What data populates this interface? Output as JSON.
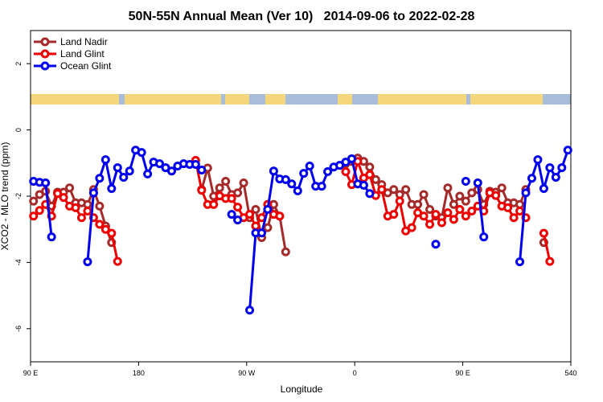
{
  "chart_data": {
    "type": "line",
    "title": "50N-55N Annual Mean (Ver 10)   2014-09-06 to 2022-02-28",
    "x_label": "Longitude",
    "y_label": "XCO2 - MLO trend (ppm)",
    "xlim": [
      90,
      540
    ],
    "ylim": [
      -7,
      3
    ],
    "xticks": [
      {
        "value": 90,
        "label": "90 E"
      },
      180,
      {
        "value": 270,
        "label": "90 W"
      },
      {
        "value": 360,
        "label": "0"
      },
      {
        "value": 450,
        "label": "90 E"
      },
      540
    ],
    "yticks": [
      -6,
      -4,
      -2,
      0,
      2
    ],
    "legend": "top-left",
    "x": [
      92.5,
      97.5,
      102.5,
      107.5,
      112.5,
      117.5,
      122.5,
      127.5,
      132.5,
      137.5,
      142.5,
      147.5,
      152.5,
      157.5,
      162.5,
      167.5,
      172.5,
      177.5,
      182.5,
      187.5,
      192.5,
      197.5,
      202.5,
      207.5,
      212.5,
      217.5,
      222.5,
      227.5,
      232.5,
      237.5,
      242.5,
      247.5,
      252.5,
      257.5,
      262.5,
      267.5,
      272.5,
      277.5,
      282.5,
      287.5,
      292.5,
      297.5,
      302.5,
      307.5,
      312.5,
      317.5,
      322.5,
      327.5,
      332.5,
      337.5,
      342.5,
      347.5,
      352.5,
      357.5,
      362.5,
      367.5,
      372.5,
      377.5,
      382.5,
      387.5,
      392.5,
      397.5,
      402.5,
      407.5,
      412.5,
      417.5,
      422.5,
      427.5,
      432.5,
      437.5,
      442.5,
      447.5,
      452.5,
      457.5,
      462.5,
      467.5,
      472.5,
      477.5,
      482.5,
      487.5,
      492.5,
      497.5,
      502.5,
      507.5,
      512.5,
      517.5,
      522.5,
      527.5,
      532.5,
      537.5
    ],
    "series": [
      {
        "name": "Land Nadir",
        "color": "#a52a2a",
        "values": [
          -2.15,
          -1.95,
          -1.85,
          -2.3,
          -1.88,
          -1.88,
          -1.75,
          -2.2,
          -2.2,
          -2.25,
          -1.8,
          -2.3,
          -2.9,
          -3.4,
          null,
          null,
          null,
          null,
          null,
          null,
          null,
          null,
          null,
          null,
          null,
          null,
          null,
          null,
          -1.8,
          -1.15,
          -2.0,
          -1.75,
          -1.55,
          -1.95,
          -1.9,
          -1.6,
          -2.65,
          -2.4,
          -3.25,
          -2.95,
          -2.25,
          -2.6,
          -3.68,
          null,
          null,
          null,
          null,
          null,
          null,
          null,
          null,
          null,
          -1.02,
          -0.95,
          -0.85,
          -0.95,
          -1.12,
          -1.5,
          -1.65,
          -1.9,
          -1.8,
          -1.95,
          -1.8,
          -2.25,
          -2.25,
          -1.95,
          -2.4,
          -2.6,
          -2.65,
          -1.75,
          -2.25,
          -2.0,
          -2.15,
          -1.9,
          -1.8,
          -2.25,
          -1.85,
          -1.88,
          -1.75,
          -2.2,
          -2.2,
          -2.25,
          -1.8,
          null,
          null,
          -3.4,
          null,
          null,
          null,
          null
        ]
      },
      {
        "name": "Land Glint",
        "color": "#ee0000",
        "values": [
          -2.6,
          -2.43,
          -2.25,
          -2.6,
          -1.92,
          -2.04,
          -2.3,
          -2.35,
          -2.65,
          -2.45,
          -2.65,
          -2.85,
          -3.0,
          -3.12,
          -3.97,
          null,
          null,
          null,
          null,
          null,
          null,
          null,
          null,
          null,
          null,
          null,
          null,
          -0.92,
          -1.82,
          -2.25,
          -2.25,
          -1.99,
          -2.07,
          -2.07,
          -2.33,
          -2.65,
          -2.55,
          -2.9,
          -2.65,
          -2.25,
          -2.55,
          -2.6,
          null,
          null,
          null,
          null,
          null,
          null,
          null,
          null,
          null,
          null,
          -1.26,
          -1.65,
          -0.95,
          -1.45,
          -1.35,
          -1.98,
          -1.8,
          -2.6,
          -2.55,
          -2.15,
          -3.05,
          -2.95,
          -2.5,
          -2.6,
          -2.85,
          -2.55,
          -2.8,
          -2.5,
          -2.7,
          -2.4,
          -2.6,
          -2.45,
          -2.3,
          -2.45,
          -1.9,
          -1.98,
          -2.3,
          -2.35,
          -2.65,
          -2.45,
          -2.65,
          null,
          null,
          -3.12,
          -3.97,
          null,
          null,
          null
        ]
      },
      {
        "name": "Ocean Glint",
        "color": "#0000ee",
        "values": [
          -1.55,
          -1.58,
          -1.6,
          -3.23,
          null,
          null,
          null,
          null,
          null,
          -3.98,
          -1.9,
          -1.46,
          -0.9,
          -1.77,
          -1.14,
          -1.43,
          -1.24,
          -0.61,
          -0.68,
          -1.33,
          -0.97,
          -1.02,
          -1.14,
          -1.24,
          -1.09,
          -1.02,
          -1.04,
          -1.04,
          -1.21,
          null,
          null,
          null,
          null,
          -2.55,
          -2.72,
          null,
          -5.44,
          -3.11,
          -3.11,
          -2.4,
          -1.24,
          -1.48,
          -1.5,
          -1.63,
          -1.84,
          -1.31,
          -1.09,
          -1.7,
          -1.7,
          -1.26,
          -1.12,
          -1.07,
          -0.97,
          -0.87,
          -1.63,
          -1.67,
          -1.92,
          null,
          null,
          null,
          null,
          null,
          null,
          null,
          null,
          null,
          null,
          -3.45,
          null,
          null,
          null,
          null,
          -1.55,
          null,
          -1.6,
          -3.23,
          null,
          null,
          null,
          null,
          null,
          -3.98,
          -1.9,
          -1.46,
          -0.9,
          -1.77,
          -1.14,
          -1.43,
          -1.14,
          -0.61
        ]
      }
    ]
  }
}
